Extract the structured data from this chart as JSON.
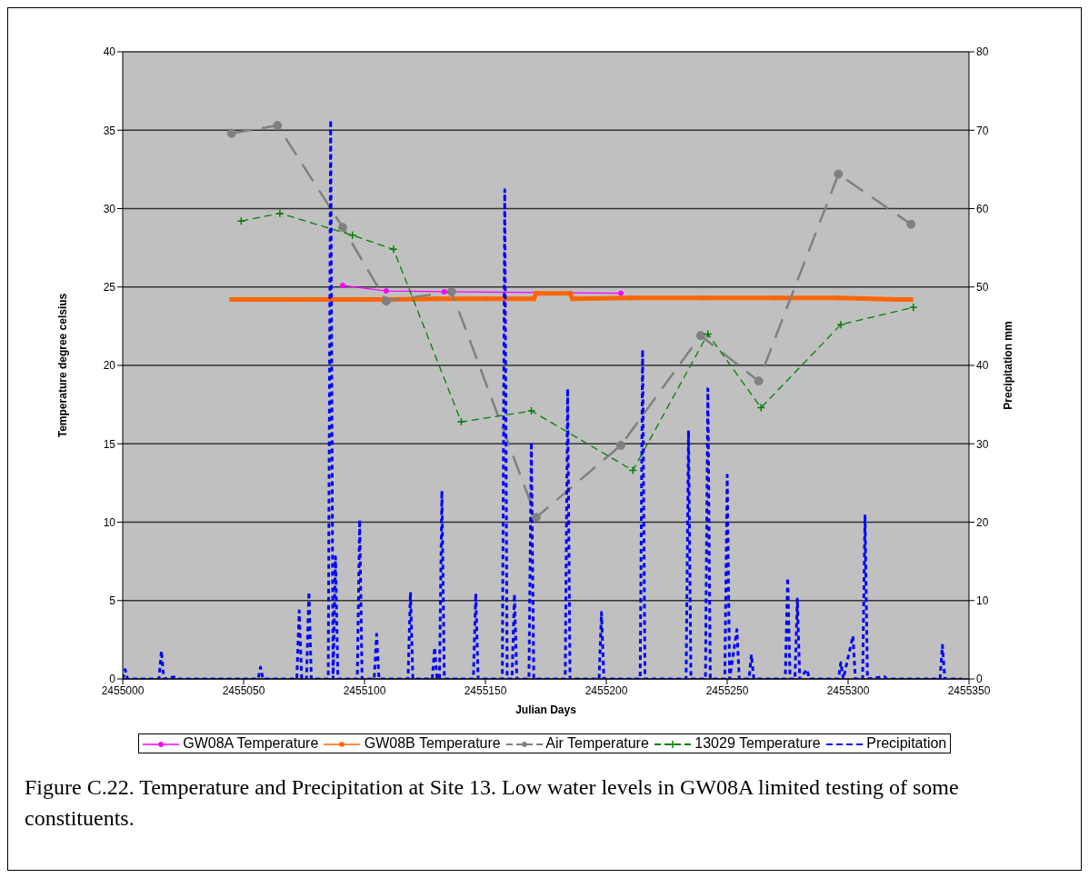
{
  "chart_data": {
    "type": "line",
    "xlabel": "Julian Days",
    "ylabel": "Temperature degree celsius",
    "y2label": "Precipitation mm",
    "xlim": [
      2455000,
      2455350
    ],
    "xticks": [
      2455000,
      2455050,
      2455100,
      2455150,
      2455200,
      2455250,
      2455300,
      2455350
    ],
    "ylim": [
      0,
      40
    ],
    "yticks": [
      0,
      5,
      10,
      15,
      20,
      25,
      30,
      35,
      40
    ],
    "y2lim": [
      0,
      80
    ],
    "y2ticks": [
      0,
      10,
      20,
      30,
      40,
      50,
      60,
      70,
      80
    ],
    "grid": "y",
    "legend": "bottom",
    "annotations": [
      "Figure C.22.  Temperature and Precipitation at Site 13. Low water levels in GW08A limited testing of some constituents."
    ],
    "series": [
      {
        "name": "GW08A Temperature",
        "color": "#ff00ff",
        "marker": "circle",
        "line_style": "solid",
        "x": [
          2455091,
          2455109,
          2455133,
          2455206
        ],
        "values": [
          25.1,
          24.75,
          24.7,
          24.6
        ]
      },
      {
        "name": "GW08B Temperature",
        "color": "#ff6600",
        "marker": "square",
        "line_style": "solid",
        "x": [
          2455045,
          2455070,
          2455091,
          2455110,
          2455130,
          2455150,
          2455170,
          2455171,
          2455185,
          2455186,
          2455210,
          2455240,
          2455270,
          2455296,
          2455320,
          2455326
        ],
        "values": [
          24.2,
          24.2,
          24.2,
          24.2,
          24.25,
          24.25,
          24.25,
          24.6,
          24.6,
          24.25,
          24.3,
          24.3,
          24.3,
          24.3,
          24.2,
          24.2
        ]
      },
      {
        "name": "Air Temperature",
        "color": "#808080",
        "marker": "circle",
        "line_style": "dashed",
        "x": [
          2455045,
          2455064,
          2455091,
          2455109,
          2455136,
          2455171,
          2455206,
          2455239,
          2455263,
          2455296,
          2455326
        ],
        "values": [
          34.8,
          35.3,
          28.8,
          24.1,
          24.7,
          10.3,
          14.9,
          21.9,
          19.0,
          32.2,
          29.0
        ]
      },
      {
        "name": "13029 Temperature",
        "color": "#008000",
        "marker": "cross",
        "line_style": "dashed",
        "x": [
          2455049,
          2455065,
          2455095,
          2455112,
          2455140,
          2455169,
          2455211,
          2455242,
          2455264,
          2455297,
          2455327
        ],
        "values": [
          29.2,
          29.7,
          28.3,
          27.4,
          16.4,
          17.1,
          13.3,
          22.0,
          17.3,
          22.6,
          23.7
        ]
      },
      {
        "name": "Precipitation",
        "color": "#0000ff",
        "marker": "none",
        "line_style": "dashed",
        "axis": "y2",
        "x": [
          2455000,
          2455001,
          2455002,
          2455015,
          2455016,
          2455017,
          2455022,
          2455023,
          2455056,
          2455057,
          2455058,
          2455072,
          2455073,
          2455074,
          2455076,
          2455077,
          2455078,
          2455085,
          2455086,
          2455087,
          2455088,
          2455089,
          2455097,
          2455098,
          2455099,
          2455104,
          2455105,
          2455106,
          2455118,
          2455119,
          2455120,
          2455128,
          2455129,
          2455130,
          2455131,
          2455132,
          2455133,
          2455145,
          2455146,
          2455147,
          2455157,
          2455158,
          2455159,
          2455161,
          2455162,
          2455163,
          2455168,
          2455169,
          2455170,
          2455183,
          2455184,
          2455185,
          2455197,
          2455198,
          2455199,
          2455214,
          2455215,
          2455216,
          2455233,
          2455234,
          2455235,
          2455241,
          2455242,
          2455243,
          2455249,
          2455250,
          2455251,
          2455254,
          2455255,
          2455259,
          2455260,
          2455261,
          2455274,
          2455275,
          2455276,
          2455278,
          2455279,
          2455280,
          2455283,
          2455284,
          2455296,
          2455297,
          2455298,
          2455302,
          2455303,
          2455306,
          2455307,
          2455308,
          2455315,
          2455316,
          2455338,
          2455339,
          2455340,
          2455347
        ],
        "values": [
          0,
          1.2,
          0,
          0,
          3.6,
          0,
          0.3,
          0,
          0,
          1.5,
          0,
          0,
          8.7,
          0,
          0,
          11.1,
          0,
          0,
          71.3,
          0,
          15.6,
          0,
          0,
          20.3,
          0,
          0,
          5.7,
          0,
          0,
          11.1,
          0,
          0,
          4.0,
          0,
          0,
          24.0,
          0,
          0,
          10.9,
          0,
          0,
          62.4,
          0,
          0,
          10.8,
          0,
          0,
          30.2,
          0,
          0,
          37.0,
          0,
          0,
          8.5,
          0,
          0,
          42.0,
          0,
          0,
          31.7,
          0,
          0,
          37.0,
          0,
          0,
          26.0,
          0,
          6.3,
          0,
          0,
          3.1,
          0,
          0,
          12.9,
          0,
          0,
          10.2,
          0,
          1.2,
          0,
          0,
          2.1,
          0,
          5.5,
          0,
          0,
          20.8,
          0,
          0.3,
          0,
          0,
          4.3,
          0,
          0
        ]
      }
    ]
  }
}
